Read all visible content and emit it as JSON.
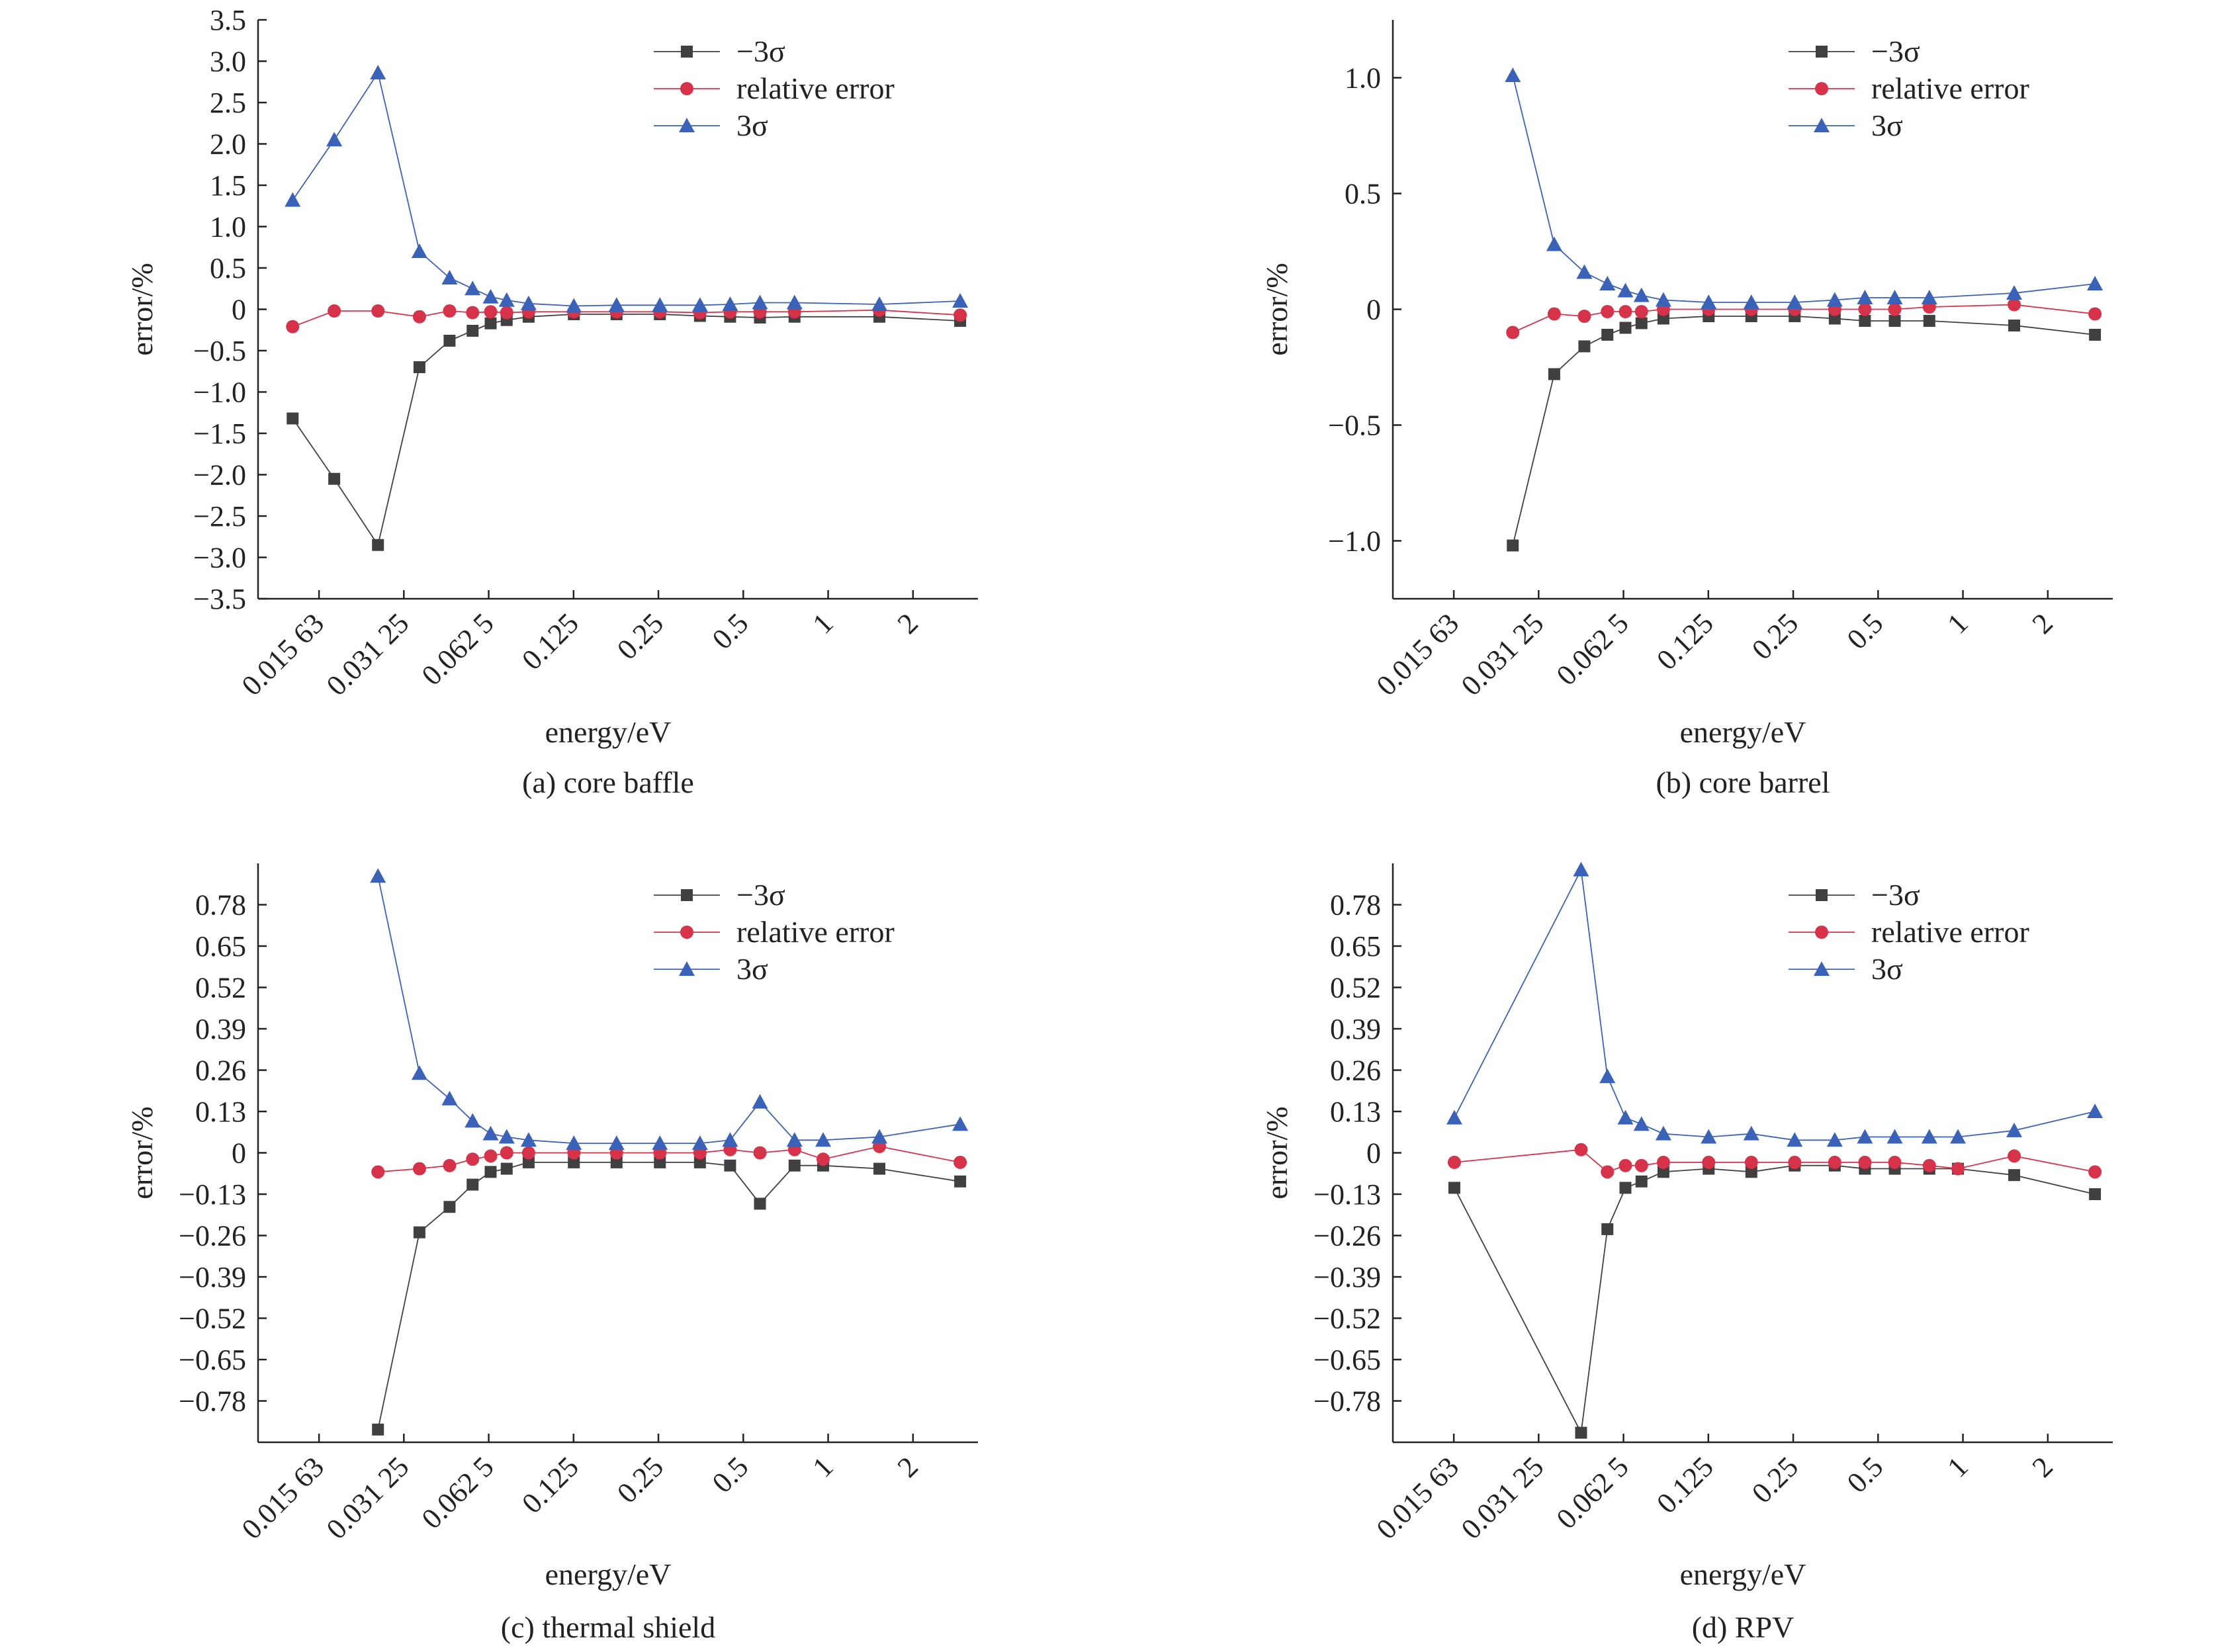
{
  "figure": {
    "colors": {
      "minus3sigma": "#404040",
      "relative_error": "#d6334a",
      "plus3sigma": "#3a62b8",
      "axis": "#222222"
    },
    "x_scale": "log2",
    "x_tick_labels": [
      "0.015 63",
      "0.031 25",
      "0.062 5",
      "0.125",
      "0.25",
      "0.5",
      "1",
      "2"
    ]
  },
  "chart_data": [
    {
      "type": "line",
      "caption": "(a) core baffle",
      "xlabel": "energy/eV",
      "ylabel": "error/%",
      "x_scale": "log2",
      "x_ticks": [
        0.01563,
        0.03125,
        0.0625,
        0.125,
        0.25,
        0.5,
        1,
        2
      ],
      "x_tick_labels": [
        "0.015 63",
        "0.031 25",
        "0.062 5",
        "0.125",
        "0.25",
        "0.5",
        "1",
        "2"
      ],
      "y_ticks": [
        3.5,
        3.0,
        2.5,
        2.0,
        1.5,
        1.0,
        0.5,
        0,
        -0.5,
        -1.0,
        -1.5,
        -2.0,
        -2.5,
        -3.0,
        -3.5
      ],
      "y_tick_labels": [
        "3.5",
        "3.0",
        "2.5",
        "2.0",
        "1.5",
        "1.0",
        "0.5",
        "0",
        "−0.5",
        "−1.0",
        "−1.5",
        "−2.0",
        "−2.5",
        "−3.0",
        "−3.5"
      ],
      "ylim": [
        -3.5,
        3.5
      ],
      "legend_position": "top-right",
      "series": [
        {
          "name": "−3σ",
          "marker": "square",
          "x": [
            0.0126,
            0.0177,
            0.0253,
            0.0355,
            0.0454,
            0.0548,
            0.0635,
            0.0724,
            0.0866,
            0.1253,
            0.1776,
            0.253,
            0.351,
            0.449,
            0.573,
            0.76,
            1.52,
            2.94
          ],
          "y": [
            -1.32,
            -2.05,
            -2.85,
            -0.7,
            -0.38,
            -0.26,
            -0.17,
            -0.13,
            -0.09,
            -0.06,
            -0.06,
            -0.06,
            -0.08,
            -0.09,
            -0.1,
            -0.09,
            -0.09,
            -0.14
          ]
        },
        {
          "name": "relative error",
          "marker": "circle",
          "x": [
            0.0126,
            0.0177,
            0.0253,
            0.0355,
            0.0454,
            0.0548,
            0.0635,
            0.0724,
            0.0866,
            0.1253,
            0.1776,
            0.253,
            0.351,
            0.449,
            0.573,
            0.76,
            1.52,
            2.94
          ],
          "y": [
            -0.21,
            -0.02,
            -0.02,
            -0.09,
            -0.02,
            -0.04,
            -0.03,
            -0.04,
            -0.03,
            -0.03,
            -0.03,
            -0.03,
            -0.04,
            -0.03,
            -0.03,
            -0.03,
            -0.01,
            -0.07
          ]
        },
        {
          "name": "3σ",
          "marker": "triangle",
          "x": [
            0.0126,
            0.0177,
            0.0253,
            0.0355,
            0.0454,
            0.0548,
            0.0635,
            0.0724,
            0.0866,
            0.1253,
            0.1776,
            0.253,
            0.351,
            0.449,
            0.573,
            0.76,
            1.52,
            2.94
          ],
          "y": [
            1.32,
            2.05,
            2.86,
            0.7,
            0.38,
            0.25,
            0.15,
            0.11,
            0.07,
            0.04,
            0.05,
            0.05,
            0.05,
            0.06,
            0.08,
            0.08,
            0.06,
            0.1
          ]
        }
      ]
    },
    {
      "type": "line",
      "caption": "(b) core barrel",
      "xlabel": "energy/eV",
      "ylabel": "error/%",
      "x_scale": "log2",
      "x_ticks": [
        0.01563,
        0.03125,
        0.0625,
        0.125,
        0.25,
        0.5,
        1,
        2
      ],
      "x_tick_labels": [
        "0.015 63",
        "0.031 25",
        "0.062 5",
        "0.125",
        "0.25",
        "0.5",
        "1",
        "2"
      ],
      "y_ticks": [
        1.0,
        0.5,
        0,
        -0.5,
        -1.0
      ],
      "y_tick_labels": [
        "1.0",
        "0.5",
        "0",
        "−0.5",
        "−1.0"
      ],
      "ylim": [
        -1.25,
        1.25
      ],
      "legend_position": "top-right",
      "series": [
        {
          "name": "−3σ",
          "marker": "square",
          "x": [
            0.0253,
            0.0355,
            0.0454,
            0.0548,
            0.0635,
            0.0724,
            0.0866,
            0.1253,
            0.1776,
            0.253,
            0.351,
            0.449,
            0.573,
            0.76,
            1.52,
            2.94
          ],
          "y": [
            -1.02,
            -0.28,
            -0.16,
            -0.11,
            -0.08,
            -0.06,
            -0.04,
            -0.03,
            -0.03,
            -0.03,
            -0.04,
            -0.05,
            -0.05,
            -0.05,
            -0.07,
            -0.11
          ]
        },
        {
          "name": "relative error",
          "marker": "circle",
          "x": [
            0.0253,
            0.0355,
            0.0454,
            0.0548,
            0.0635,
            0.0724,
            0.0866,
            0.1253,
            0.1776,
            0.253,
            0.351,
            0.449,
            0.573,
            0.76,
            1.52,
            2.94
          ],
          "y": [
            -0.1,
            -0.02,
            -0.03,
            -0.01,
            -0.01,
            -0.01,
            0.0,
            0.0,
            0.0,
            0.0,
            0.0,
            0.0,
            0.0,
            0.01,
            0.02,
            -0.02
          ]
        },
        {
          "name": "3σ",
          "marker": "triangle",
          "x": [
            0.0253,
            0.0355,
            0.0454,
            0.0548,
            0.0635,
            0.0724,
            0.0866,
            0.1253,
            0.1776,
            0.253,
            0.351,
            0.449,
            0.573,
            0.76,
            1.52,
            2.94
          ],
          "y": [
            1.01,
            0.28,
            0.16,
            0.11,
            0.08,
            0.06,
            0.04,
            0.03,
            0.03,
            0.03,
            0.04,
            0.05,
            0.05,
            0.05,
            0.07,
            0.11
          ]
        }
      ]
    },
    {
      "type": "line",
      "caption": "(c) thermal shield",
      "xlabel": "energy/eV",
      "ylabel": "error/%",
      "x_scale": "log2",
      "x_ticks": [
        0.01563,
        0.03125,
        0.0625,
        0.125,
        0.25,
        0.5,
        1,
        2
      ],
      "x_tick_labels": [
        "0.015 63",
        "0.031 25",
        "0.062 5",
        "0.125",
        "0.25",
        "0.5",
        "1",
        "2"
      ],
      "y_ticks": [
        0.78,
        0.65,
        0.52,
        0.39,
        0.26,
        0.13,
        0,
        -0.13,
        -0.26,
        -0.39,
        -0.52,
        -0.65,
        -0.78
      ],
      "y_tick_labels": [
        "0.78",
        "0.65",
        "0.52",
        "0.39",
        "0.26",
        "0.13",
        "0",
        "−0.13",
        "−0.26",
        "−0.39",
        "−0.52",
        "−0.65",
        "−0.78"
      ],
      "ylim": [
        -0.91,
        0.91
      ],
      "legend_position": "top-right",
      "series": [
        {
          "name": "−3σ",
          "marker": "square",
          "x": [
            0.0253,
            0.0355,
            0.0454,
            0.0548,
            0.0635,
            0.0724,
            0.0866,
            0.1253,
            0.1776,
            0.253,
            0.351,
            0.449,
            0.573,
            0.76,
            0.96,
            1.52,
            2.94
          ],
          "y": [
            -0.87,
            -0.25,
            -0.17,
            -0.1,
            -0.06,
            -0.05,
            -0.03,
            -0.03,
            -0.03,
            -0.03,
            -0.03,
            -0.04,
            -0.16,
            -0.04,
            -0.04,
            -0.05,
            -0.09
          ]
        },
        {
          "name": "relative error",
          "marker": "circle",
          "x": [
            0.0253,
            0.0355,
            0.0454,
            0.0548,
            0.0635,
            0.0724,
            0.0866,
            0.1253,
            0.1776,
            0.253,
            0.351,
            0.449,
            0.573,
            0.76,
            0.96,
            1.52,
            2.94
          ],
          "y": [
            -0.06,
            -0.05,
            -0.04,
            -0.02,
            -0.01,
            0.0,
            0.0,
            0.0,
            0.0,
            0.0,
            0.0,
            0.01,
            0.0,
            0.01,
            -0.02,
            0.02,
            -0.03
          ]
        },
        {
          "name": "3σ",
          "marker": "triangle",
          "x": [
            0.0253,
            0.0355,
            0.0454,
            0.0548,
            0.0635,
            0.0724,
            0.0866,
            0.1253,
            0.1776,
            0.253,
            0.351,
            0.449,
            0.573,
            0.76,
            0.96,
            1.52,
            2.94
          ],
          "y": [
            0.87,
            0.25,
            0.17,
            0.1,
            0.06,
            0.05,
            0.04,
            0.03,
            0.03,
            0.03,
            0.03,
            0.04,
            0.16,
            0.04,
            0.04,
            0.05,
            0.09
          ]
        }
      ]
    },
    {
      "type": "line",
      "caption": "(d) RPV",
      "xlabel": "energy/eV",
      "ylabel": "error/%",
      "x_scale": "log2",
      "x_ticks": [
        0.01563,
        0.03125,
        0.0625,
        0.125,
        0.25,
        0.5,
        1,
        2
      ],
      "x_tick_labels": [
        "0.015 63",
        "0.031 25",
        "0.062 5",
        "0.125",
        "0.25",
        "0.5",
        "1",
        "2"
      ],
      "y_ticks": [
        0.78,
        0.65,
        0.52,
        0.39,
        0.26,
        0.13,
        0,
        -0.13,
        -0.26,
        -0.39,
        -0.52,
        -0.65,
        -0.78
      ],
      "y_tick_labels": [
        "0.78",
        "0.65",
        "0.52",
        "0.39",
        "0.26",
        "0.13",
        "0",
        "−0.13",
        "−0.26",
        "−0.39",
        "−0.52",
        "−0.65",
        "−0.78"
      ],
      "ylim": [
        -0.91,
        0.91
      ],
      "legend_position": "top-right",
      "series": [
        {
          "name": "−3σ",
          "marker": "square",
          "x": [
            0.0157,
            0.0442,
            0.0548,
            0.0635,
            0.0724,
            0.0866,
            0.1253,
            0.1776,
            0.253,
            0.351,
            0.449,
            0.573,
            0.76,
            0.96,
            1.52,
            2.94
          ],
          "y": [
            -0.11,
            -0.88,
            -0.24,
            -0.11,
            -0.09,
            -0.06,
            -0.05,
            -0.06,
            -0.04,
            -0.04,
            -0.05,
            -0.05,
            -0.05,
            -0.05,
            -0.07,
            -0.13
          ]
        },
        {
          "name": "relative error",
          "marker": "circle",
          "x": [
            0.0157,
            0.0442,
            0.0548,
            0.0635,
            0.0724,
            0.0866,
            0.1253,
            0.1776,
            0.253,
            0.351,
            0.449,
            0.573,
            0.76,
            0.96,
            1.52,
            2.94
          ],
          "y": [
            -0.03,
            0.01,
            -0.06,
            -0.04,
            -0.04,
            -0.03,
            -0.03,
            -0.03,
            -0.03,
            -0.03,
            -0.03,
            -0.03,
            -0.04,
            -0.05,
            -0.01,
            -0.06
          ]
        },
        {
          "name": "3σ",
          "marker": "triangle",
          "x": [
            0.0157,
            0.0442,
            0.0548,
            0.0635,
            0.0724,
            0.0866,
            0.1253,
            0.1776,
            0.253,
            0.351,
            0.449,
            0.573,
            0.76,
            0.96,
            1.52,
            2.94
          ],
          "y": [
            0.11,
            0.89,
            0.24,
            0.11,
            0.09,
            0.06,
            0.05,
            0.06,
            0.04,
            0.04,
            0.05,
            0.05,
            0.05,
            0.05,
            0.07,
            0.13
          ]
        }
      ]
    }
  ]
}
